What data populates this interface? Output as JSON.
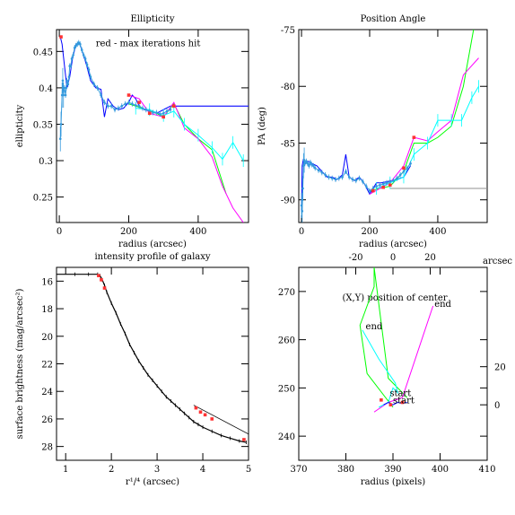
{
  "chart_data": [
    {
      "id": "ellipticity",
      "type": "line",
      "title": "Ellipticity",
      "xlabel": "radius (arcsec)",
      "ylabel": "ellipticity",
      "xlim": [
        -8,
        545
      ],
      "ylim": [
        0.215,
        0.48
      ],
      "xticks": [
        0,
        200,
        400
      ],
      "yticks": [
        0.25,
        0.3,
        0.35,
        0.4,
        0.45
      ],
      "yticklabels": [
        "0.25",
        "0.3",
        "0.35",
        "0.4",
        "0.45"
      ],
      "annotation": {
        "text": "red - max iterations hit",
        "color": "#ff0000",
        "x": 105,
        "y": 0.457
      },
      "series": [
        {
          "color": "#0000ff",
          "x": [
            3,
            8,
            15,
            22,
            30,
            38,
            48,
            58,
            68,
            78,
            90,
            105,
            120,
            130,
            140,
            155,
            170,
            185,
            200,
            210,
            220,
            230,
            245,
            260,
            280,
            300,
            320,
            545
          ],
          "y": [
            0.47,
            0.46,
            0.43,
            0.4,
            0.415,
            0.44,
            0.46,
            0.462,
            0.447,
            0.432,
            0.41,
            0.4,
            0.398,
            0.36,
            0.385,
            0.375,
            0.37,
            0.372,
            0.38,
            0.39,
            0.385,
            0.375,
            0.37,
            0.368,
            0.365,
            0.37,
            0.375,
            0.375
          ]
        },
        {
          "color": "#00ff00",
          "x": [
            200,
            220,
            250,
            280,
            300,
            330,
            360,
            400,
            440,
            480
          ],
          "y": [
            0.378,
            0.375,
            0.37,
            0.365,
            0.36,
            0.378,
            0.35,
            0.33,
            0.315,
            0.255
          ]
        },
        {
          "color": "#ff00ff",
          "x": [
            200,
            230,
            260,
            300,
            330,
            360,
            400,
            440,
            470,
            500,
            530
          ],
          "y": [
            0.39,
            0.385,
            0.365,
            0.36,
            0.38,
            0.345,
            0.33,
            0.305,
            0.265,
            0.235,
            0.215
          ]
        },
        {
          "color": "#00ffff",
          "x": [
            220,
            260,
            300,
            330,
            360,
            400,
            440,
            470,
            500,
            530
          ],
          "y": [
            0.372,
            0.37,
            0.362,
            0.368,
            0.35,
            0.335,
            0.318,
            0.302,
            0.325,
            0.3
          ],
          "errors": true
        },
        {
          "color": "#3399dd",
          "dense": true,
          "errors": true,
          "x": [
            3,
            5,
            8,
            10,
            12,
            15,
            18,
            20,
            22,
            25,
            28,
            30,
            33,
            36,
            40,
            44,
            48,
            52,
            56,
            60,
            65,
            70,
            75,
            80,
            85,
            90,
            100,
            110,
            120,
            130,
            140,
            150,
            160,
            170,
            180,
            190,
            200,
            210,
            220,
            230,
            240,
            250,
            260,
            270,
            280,
            290,
            300,
            310,
            320
          ],
          "y": [
            0.33,
            0.35,
            0.39,
            0.41,
            0.39,
            0.4,
            0.39,
            0.4,
            0.41,
            0.405,
            0.415,
            0.43,
            0.43,
            0.44,
            0.445,
            0.455,
            0.458,
            0.46,
            0.462,
            0.46,
            0.452,
            0.445,
            0.44,
            0.432,
            0.425,
            0.415,
            0.405,
            0.4,
            0.39,
            0.38,
            0.375,
            0.375,
            0.37,
            0.372,
            0.375,
            0.378,
            0.38,
            0.378,
            0.376,
            0.375,
            0.372,
            0.37,
            0.368,
            0.366,
            0.366,
            0.364,
            0.365,
            0.368,
            0.37
          ]
        }
      ],
      "red_points": [
        {
          "x": 5,
          "y": 0.47
        },
        {
          "x": 200,
          "y": 0.39
        },
        {
          "x": 230,
          "y": 0.38
        },
        {
          "x": 260,
          "y": 0.365
        },
        {
          "x": 300,
          "y": 0.36
        },
        {
          "x": 330,
          "y": 0.375
        }
      ],
      "hline": {
        "y": 0.375,
        "x0": 320,
        "x1": 545,
        "color": "#a0a0ff"
      }
    },
    {
      "id": "position-angle",
      "type": "line",
      "title": "Position Angle",
      "xlabel": "radius (arcsec)",
      "ylabel": "PA (deg)",
      "xlim": [
        -8,
        545
      ],
      "ylim": [
        -92,
        -75
      ],
      "xticks": [
        0,
        200,
        400
      ],
      "yticks": [
        -90,
        -85,
        -80,
        -75
      ],
      "yticklabels": [
        "-90",
        "-85",
        "-80",
        "-75"
      ],
      "series": [
        {
          "color": "#0000ff",
          "x": [
            0,
            2,
            5,
            10,
            20,
            30,
            45,
            60,
            75,
            90,
            105,
            120,
            130,
            140,
            155,
            170,
            185,
            200,
            210,
            220,
            235,
            250,
            265,
            280,
            300,
            320
          ],
          "y": [
            -91,
            -87,
            -86.5,
            -86.8,
            -86.6,
            -86.8,
            -87,
            -87.5,
            -88,
            -88,
            -88.2,
            -87.8,
            -86,
            -88,
            -88.3,
            -88,
            -88.6,
            -89.5,
            -89,
            -88.5,
            -88.5,
            -88.4,
            -88.3,
            -88.2,
            -88,
            -87
          ]
        },
        {
          "color": "#00ff00",
          "x": [
            200,
            230,
            260,
            300,
            330,
            370,
            400,
            440,
            475,
            505
          ],
          "y": [
            -89.2,
            -89,
            -88.8,
            -87.5,
            -85,
            -85,
            -84.5,
            -83.5,
            -80,
            -75
          ]
        },
        {
          "color": "#ff00ff",
          "x": [
            200,
            230,
            260,
            300,
            330,
            370,
            400,
            440,
            475,
            520
          ],
          "y": [
            -89.5,
            -89,
            -88.5,
            -87,
            -84.5,
            -84.8,
            -84,
            -83,
            -79,
            -77.5
          ]
        },
        {
          "color": "#00ffff",
          "x": [
            220,
            260,
            300,
            330,
            370,
            400,
            440,
            470,
            500,
            520
          ],
          "y": [
            -89,
            -88.5,
            -88,
            -86,
            -85,
            -83,
            -83,
            -83,
            -81,
            -80
          ],
          "errors": true
        },
        {
          "color": "#3399dd",
          "dense": true,
          "errors": true,
          "x": [
            0,
            2,
            4,
            6,
            8,
            10,
            14,
            18,
            22,
            26,
            30,
            35,
            40,
            50,
            60,
            70,
            80,
            90,
            100,
            110,
            120,
            130,
            140,
            150,
            160,
            170,
            180,
            190,
            200,
            210,
            220,
            230,
            240,
            250,
            260,
            270,
            280,
            290,
            300,
            310,
            320
          ],
          "y": [
            -90.5,
            -91,
            -89,
            -87,
            -86.5,
            -86.8,
            -86.6,
            -86.8,
            -87,
            -86.7,
            -86.9,
            -87,
            -87.2,
            -87.4,
            -87.6,
            -87.8,
            -88,
            -88.1,
            -88.2,
            -88.1,
            -88,
            -87.5,
            -88,
            -88.2,
            -88.3,
            -88.1,
            -88.4,
            -88.8,
            -89.2,
            -89,
            -88.8,
            -88.7,
            -88.6,
            -88.5,
            -88.4,
            -88.3,
            -88.1,
            -87.8,
            -87.5,
            -87.2,
            -86.8
          ]
        }
      ],
      "red_points": [
        {
          "x": 210,
          "y": -89.2
        },
        {
          "x": 240,
          "y": -88.9
        },
        {
          "x": 260,
          "y": -88.7
        },
        {
          "x": 300,
          "y": -87.2
        },
        {
          "x": 330,
          "y": -84.5
        }
      ],
      "hline": {
        "y": -89,
        "x0": 260,
        "x1": 545,
        "color": "#909090"
      }
    },
    {
      "id": "intensity-profile",
      "type": "line",
      "title": "intensity profile of galaxy",
      "xlabel": "r¹/⁴ (arcsec)",
      "ylabel": "surface brightness (mag/arcsec²)",
      "xlim": [
        0.8,
        5.0
      ],
      "ylim": [
        29,
        15
      ],
      "xticks": [
        1,
        2,
        3,
        4,
        5
      ],
      "yticks": [
        16,
        18,
        20,
        22,
        24,
        26,
        28
      ],
      "main": {
        "x": [
          0.8,
          1.2,
          1.5,
          1.7,
          1.75,
          1.8,
          1.85,
          1.9,
          2.0,
          2.1,
          2.2,
          2.3,
          2.4,
          2.5,
          2.6,
          2.7,
          2.8,
          2.9,
          3.0,
          3.1,
          3.2,
          3.3,
          3.4,
          3.5,
          3.6,
          3.7,
          3.8,
          3.9,
          4.0,
          4.2,
          4.4,
          4.6,
          4.8,
          4.95
        ],
        "y": [
          15.5,
          15.5,
          15.5,
          15.5,
          15.6,
          15.9,
          16.3,
          16.8,
          17.6,
          18.3,
          19.1,
          19.8,
          20.6,
          21.2,
          21.8,
          22.3,
          22.8,
          23.2,
          23.6,
          24.0,
          24.4,
          24.7,
          25.0,
          25.3,
          25.6,
          25.9,
          26.2,
          26.4,
          26.6,
          26.9,
          27.2,
          27.4,
          27.6,
          27.7
        ]
      },
      "fit": {
        "x": [
          3.8,
          5.0
        ],
        "y": [
          25.0,
          27.1
        ]
      },
      "red_points": [
        {
          "x": 1.72,
          "y": 15.6
        },
        {
          "x": 1.78,
          "y": 15.9
        },
        {
          "x": 1.85,
          "y": 16.5
        },
        {
          "x": 3.85,
          "y": 25.2
        },
        {
          "x": 3.95,
          "y": 25.5
        },
        {
          "x": 4.05,
          "y": 25.7
        },
        {
          "x": 4.2,
          "y": 26.0
        },
        {
          "x": 4.9,
          "y": 27.5
        }
      ]
    },
    {
      "id": "center-position",
      "type": "line",
      "title": "(X,Y) position of center",
      "xlabel": "radius (pixels)",
      "ylabel": "",
      "top_label": "arcsec",
      "xlim": [
        370,
        410
      ],
      "ylim": [
        235,
        275
      ],
      "xticks": [
        370,
        380,
        390,
        400,
        410
      ],
      "yticks": [
        240,
        250,
        260,
        270
      ],
      "top_ticks": [
        {
          "v": -20,
          "label": "-20"
        },
        {
          "v": 0,
          "label": "0"
        },
        {
          "v": 20,
          "label": "20"
        }
      ],
      "right_ticks": [
        {
          "v": 0,
          "label": "0"
        },
        {
          "v": 20,
          "label": "20"
        }
      ],
      "arc_origin": {
        "x": 390,
        "y": 246.5
      },
      "arc_per_pixel": 2.53,
      "series": [
        {
          "color": "#00ff00",
          "x": [
            389,
            390,
            384.5,
            383,
            386,
            386,
            389,
            393
          ],
          "y": [
            247.5,
            246,
            253,
            263,
            271,
            275,
            252,
            248
          ]
        },
        {
          "color": "#ff00ff",
          "x": [
            386,
            389,
            392,
            398.5
          ],
          "y": [
            245,
            247,
            248,
            267
          ]
        },
        {
          "color": "#00ffff",
          "x": [
            387,
            389,
            390,
            391,
            390.5,
            387,
            383.5
          ],
          "y": [
            246,
            247,
            250,
            249,
            251,
            256,
            262
          ]
        },
        {
          "color": "#0000ff",
          "x": [
            388,
            389,
            390,
            391,
            392,
            393
          ],
          "y": [
            246.5,
            247,
            246.5,
            247,
            246.8,
            247
          ]
        }
      ],
      "labels": [
        {
          "text": "end",
          "x": 384.2,
          "y": 262.2,
          "color": "#00ffff"
        },
        {
          "text": "end",
          "x": 398.8,
          "y": 266.8,
          "color": "#ff00ff"
        },
        {
          "text": "start",
          "x": 389.3,
          "y": 248.3,
          "color": "#00ffff"
        },
        {
          "text": "start",
          "x": 390,
          "y": 246.8,
          "color": "#ff00ff"
        }
      ],
      "red_points": [
        {
          "x": 387.5,
          "y": 247.5
        },
        {
          "x": 389.5,
          "y": 246.5
        },
        {
          "x": 392,
          "y": 247
        }
      ]
    }
  ]
}
